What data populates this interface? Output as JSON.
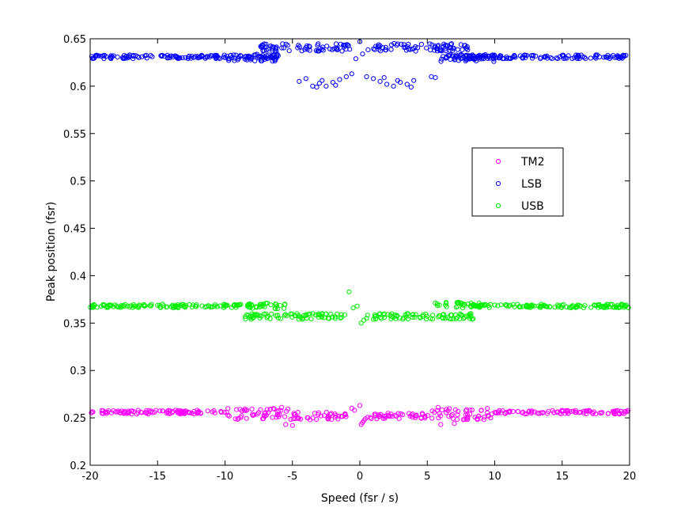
{
  "chart_data": {
    "type": "scatter",
    "title": "",
    "xlabel": "Speed (fsr / s)",
    "ylabel": "Peak position (fsr)",
    "xlim": [
      -20,
      20
    ],
    "ylim": [
      0.2,
      0.65
    ],
    "x_ticks": [
      -20,
      -15,
      -10,
      -5,
      0,
      5,
      10,
      15,
      20
    ],
    "x_tick_labels": [
      "-20",
      "-15",
      "-10",
      "-5",
      "0",
      "5",
      "10",
      "15",
      "20"
    ],
    "y_ticks": [
      0.2,
      0.25,
      0.3,
      0.35,
      0.4,
      0.45,
      0.5,
      0.55,
      0.6,
      0.65
    ],
    "y_tick_labels": [
      "0.2",
      "0.25",
      "0.3",
      "0.35",
      "0.4",
      "0.45",
      "0.5",
      "0.55",
      "0.6",
      "0.65"
    ],
    "grid": false,
    "legend_position": "upper-right",
    "marker": "open-circle",
    "series": [
      {
        "name": "TM2",
        "color": "#ff00ff",
        "bands": [
          {
            "x_range": [
              -20,
              -10
            ],
            "y_center": 0.256,
            "spread": 0.002
          },
          {
            "x_range": [
              -10,
              -5
            ],
            "y_center": 0.254,
            "spread": 0.006
          },
          {
            "x_range": [
              -5,
              -1
            ],
            "y_center": 0.252,
            "spread": 0.004
          },
          {
            "x_range": [
              0.5,
              5
            ],
            "y_center": 0.252,
            "spread": 0.003
          },
          {
            "x_range": [
              5,
              10
            ],
            "y_center": 0.254,
            "spread": 0.006
          },
          {
            "x_range": [
              10,
              20
            ],
            "y_center": 0.256,
            "spread": 0.002
          }
        ],
        "points": [
          {
            "x": -0.6,
            "y": 0.26
          },
          {
            "x": -0.4,
            "y": 0.258
          },
          {
            "x": 0,
            "y": 0.263
          },
          {
            "x": 0.1,
            "y": 0.243
          },
          {
            "x": 0.2,
            "y": 0.245
          },
          {
            "x": 0.3,
            "y": 0.247
          },
          {
            "x": 0.4,
            "y": 0.249
          },
          {
            "x": -5.5,
            "y": 0.243
          },
          {
            "x": -5,
            "y": 0.242
          },
          {
            "x": 6,
            "y": 0.243
          },
          {
            "x": 7,
            "y": 0.244
          },
          {
            "x": 5.8,
            "y": 0.261
          },
          {
            "x": -5.8,
            "y": 0.261
          }
        ]
      },
      {
        "name": "LSB",
        "color": "#0000ff",
        "bands": [
          {
            "x_range": [
              -20,
              -6
            ],
            "y_center": 0.631,
            "spread": 0.002
          },
          {
            "x_range": [
              -10,
              -6
            ],
            "y_center": 0.63,
            "spread": 0.004
          },
          {
            "x_range": [
              -7.5,
              -0.5
            ],
            "y_center": 0.641,
            "spread": 0.004
          },
          {
            "x_range": [
              0.5,
              8
            ],
            "y_center": 0.641,
            "spread": 0.004
          },
          {
            "x_range": [
              6,
              10
            ],
            "y_center": 0.63,
            "spread": 0.004
          },
          {
            "x_range": [
              6,
              20
            ],
            "y_center": 0.631,
            "spread": 0.002
          }
        ],
        "points": [
          {
            "x": -4.5,
            "y": 0.605
          },
          {
            "x": -4,
            "y": 0.608
          },
          {
            "x": -3.5,
            "y": 0.6
          },
          {
            "x": -3,
            "y": 0.603
          },
          {
            "x": -2.5,
            "y": 0.6
          },
          {
            "x": -2,
            "y": 0.604
          },
          {
            "x": -1.5,
            "y": 0.607
          },
          {
            "x": -1,
            "y": 0.61
          },
          {
            "x": -0.6,
            "y": 0.613
          },
          {
            "x": -2.8,
            "y": 0.606
          },
          {
            "x": -1.8,
            "y": 0.601
          },
          {
            "x": -3.2,
            "y": 0.599
          },
          {
            "x": 0.5,
            "y": 0.61
          },
          {
            "x": 1,
            "y": 0.608
          },
          {
            "x": 1.5,
            "y": 0.605
          },
          {
            "x": 2,
            "y": 0.602
          },
          {
            "x": 2.5,
            "y": 0.6
          },
          {
            "x": 3,
            "y": 0.604
          },
          {
            "x": 3.5,
            "y": 0.602
          },
          {
            "x": 4,
            "y": 0.606
          },
          {
            "x": 3.8,
            "y": 0.599
          },
          {
            "x": 1.8,
            "y": 0.609
          },
          {
            "x": 2.8,
            "y": 0.606
          },
          {
            "x": 5.3,
            "y": 0.61
          },
          {
            "x": 5.6,
            "y": 0.609
          },
          {
            "x": -0.3,
            "y": 0.629
          },
          {
            "x": 0,
            "y": 0.647
          },
          {
            "x": 0.2,
            "y": 0.634
          }
        ]
      },
      {
        "name": "USB",
        "color": "#00ee00",
        "bands": [
          {
            "x_range": [
              -20,
              -8
            ],
            "y_center": 0.368,
            "spread": 0.002
          },
          {
            "x_range": [
              -8.5,
              -5.5
            ],
            "y_center": 0.368,
            "spread": 0.003
          },
          {
            "x_range": [
              -8.5,
              -1
            ],
            "y_center": 0.357,
            "spread": 0.003
          },
          {
            "x_range": [
              0.5,
              8.5
            ],
            "y_center": 0.357,
            "spread": 0.003
          },
          {
            "x_range": [
              5.5,
              9
            ],
            "y_center": 0.369,
            "spread": 0.003
          },
          {
            "x_range": [
              8,
              20
            ],
            "y_center": 0.368,
            "spread": 0.002
          }
        ],
        "points": [
          {
            "x": -0.8,
            "y": 0.383
          },
          {
            "x": -0.5,
            "y": 0.366
          },
          {
            "x": -0.2,
            "y": 0.368
          },
          {
            "x": 0.1,
            "y": 0.35
          },
          {
            "x": 0.3,
            "y": 0.353
          },
          {
            "x": 0.5,
            "y": 0.355
          }
        ]
      }
    ]
  }
}
